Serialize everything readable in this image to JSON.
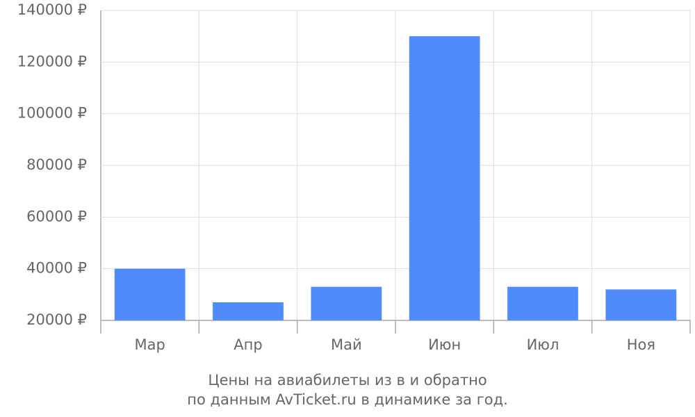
{
  "chart_data": {
    "type": "bar",
    "title": "Цены на авиабилеты из  в  и обратно",
    "subtitle": "по данным AvTicket.ru в динамике за год.",
    "categories": [
      "Мар",
      "Апр",
      "Май",
      "Июн",
      "Июл",
      "Ноя"
    ],
    "values": [
      40000,
      27000,
      33000,
      130000,
      33000,
      32000
    ],
    "color": "#4f8bfa",
    "ylim": [
      20000,
      140000
    ],
    "yticks": [
      {
        "value": 20000,
        "label": "20000 ₽"
      },
      {
        "value": 40000,
        "label": "40000 ₽"
      },
      {
        "value": 60000,
        "label": "60000 ₽"
      },
      {
        "value": 80000,
        "label": "80000 ₽"
      },
      {
        "value": 100000,
        "label": "100000 ₽"
      },
      {
        "value": 120000,
        "label": "120000 ₽"
      },
      {
        "value": 140000,
        "label": "140000 ₽"
      }
    ],
    "grid": true
  }
}
